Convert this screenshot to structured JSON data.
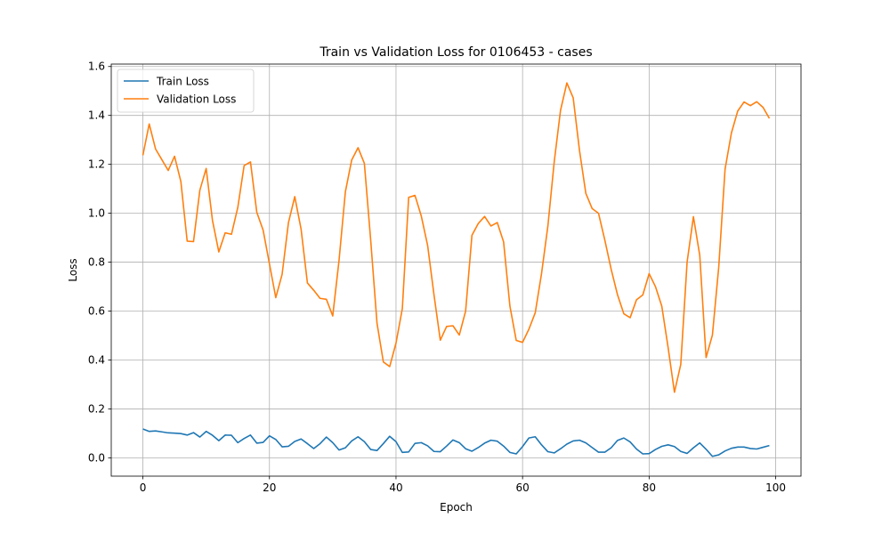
{
  "chart_data": {
    "type": "line",
    "title": "Train vs Validation Loss for 0106453 - cases",
    "xlabel": "Epoch",
    "ylabel": "Loss",
    "xlim": [
      -5,
      104
    ],
    "ylim": [
      -0.075,
      1.61
    ],
    "xticks": [
      0,
      20,
      40,
      60,
      80,
      100
    ],
    "yticks": [
      0.0,
      0.2,
      0.4,
      0.6,
      0.8,
      1.0,
      1.2,
      1.4,
      1.6
    ],
    "grid": true,
    "legend_position": "top-left",
    "series": [
      {
        "name": "Train Loss",
        "color": "#1f77b4",
        "x": [
          0,
          1,
          2,
          3,
          4,
          5,
          6,
          7,
          8,
          9,
          10,
          11,
          12,
          13,
          14,
          15,
          16,
          17,
          18,
          19,
          20,
          21,
          22,
          23,
          24,
          25,
          26,
          27,
          28,
          29,
          30,
          31,
          32,
          33,
          34,
          35,
          36,
          37,
          38,
          39,
          40,
          41,
          42,
          43,
          44,
          45,
          46,
          47,
          48,
          49,
          50,
          51,
          52,
          53,
          54,
          55,
          56,
          57,
          58,
          59,
          60,
          61,
          62,
          63,
          64,
          65,
          66,
          67,
          68,
          69,
          70,
          71,
          72,
          73,
          74,
          75,
          76,
          77,
          78,
          79,
          80,
          81,
          82,
          83,
          84,
          85,
          86,
          87,
          88,
          89,
          90,
          91,
          92,
          93,
          94,
          95,
          96,
          97,
          98,
          99
        ],
        "values": [
          0.118,
          0.108,
          0.11,
          0.106,
          0.102,
          0.101,
          0.099,
          0.093,
          0.103,
          0.085,
          0.108,
          0.092,
          0.07,
          0.093,
          0.092,
          0.062,
          0.079,
          0.093,
          0.06,
          0.063,
          0.09,
          0.075,
          0.045,
          0.047,
          0.067,
          0.077,
          0.058,
          0.038,
          0.058,
          0.085,
          0.062,
          0.032,
          0.041,
          0.069,
          0.086,
          0.066,
          0.034,
          0.03,
          0.058,
          0.088,
          0.066,
          0.022,
          0.024,
          0.059,
          0.062,
          0.049,
          0.026,
          0.025,
          0.048,
          0.073,
          0.062,
          0.037,
          0.027,
          0.042,
          0.06,
          0.072,
          0.068,
          0.048,
          0.022,
          0.016,
          0.046,
          0.081,
          0.086,
          0.053,
          0.025,
          0.02,
          0.037,
          0.056,
          0.069,
          0.072,
          0.061,
          0.042,
          0.023,
          0.023,
          0.041,
          0.071,
          0.081,
          0.065,
          0.036,
          0.016,
          0.017,
          0.034,
          0.047,
          0.053,
          0.046,
          0.026,
          0.018,
          0.041,
          0.061,
          0.035,
          0.006,
          0.012,
          0.028,
          0.039,
          0.044,
          0.044,
          0.038,
          0.036,
          0.043,
          0.05
        ]
      },
      {
        "name": "Validation Loss",
        "color": "#ff7f0e",
        "x": [
          0,
          1,
          2,
          3,
          4,
          5,
          6,
          7,
          8,
          9,
          10,
          11,
          12,
          13,
          14,
          15,
          16,
          17,
          18,
          19,
          20,
          21,
          22,
          23,
          24,
          25,
          26,
          27,
          28,
          29,
          30,
          31,
          32,
          33,
          34,
          35,
          36,
          37,
          38,
          39,
          40,
          41,
          42,
          43,
          44,
          45,
          46,
          47,
          48,
          49,
          50,
          51,
          52,
          53,
          54,
          55,
          56,
          57,
          58,
          59,
          60,
          61,
          62,
          63,
          64,
          65,
          66,
          67,
          68,
          69,
          70,
          71,
          72,
          73,
          74,
          75,
          76,
          77,
          78,
          79,
          80,
          81,
          82,
          83,
          84,
          85,
          86,
          87,
          88,
          89,
          90,
          91,
          92,
          93,
          94,
          95,
          96,
          97,
          98,
          99
        ],
        "values": [
          1.237,
          1.365,
          1.263,
          1.219,
          1.175,
          1.233,
          1.13,
          0.886,
          0.884,
          1.094,
          1.183,
          0.97,
          0.842,
          0.92,
          0.914,
          1.024,
          1.195,
          1.21,
          1.004,
          0.931,
          0.793,
          0.655,
          0.75,
          0.961,
          1.068,
          0.935,
          0.715,
          0.685,
          0.652,
          0.648,
          0.58,
          0.808,
          1.088,
          1.218,
          1.268,
          1.204,
          0.89,
          0.55,
          0.392,
          0.373,
          0.469,
          0.61,
          1.065,
          1.073,
          0.988,
          0.868,
          0.667,
          0.481,
          0.537,
          0.54,
          0.502,
          0.6,
          0.91,
          0.958,
          0.987,
          0.948,
          0.962,
          0.883,
          0.62,
          0.48,
          0.472,
          0.526,
          0.593,
          0.754,
          0.948,
          1.21,
          1.421,
          1.533,
          1.472,
          1.256,
          1.081,
          1.019,
          1.0,
          0.89,
          0.771,
          0.667,
          0.589,
          0.573,
          0.646,
          0.666,
          0.753,
          0.7,
          0.62,
          0.451,
          0.268,
          0.382,
          0.8,
          0.986,
          0.828,
          0.41,
          0.502,
          0.78,
          1.18,
          1.328,
          1.418,
          1.455,
          1.44,
          1.456,
          1.433,
          1.388
        ]
      }
    ]
  }
}
